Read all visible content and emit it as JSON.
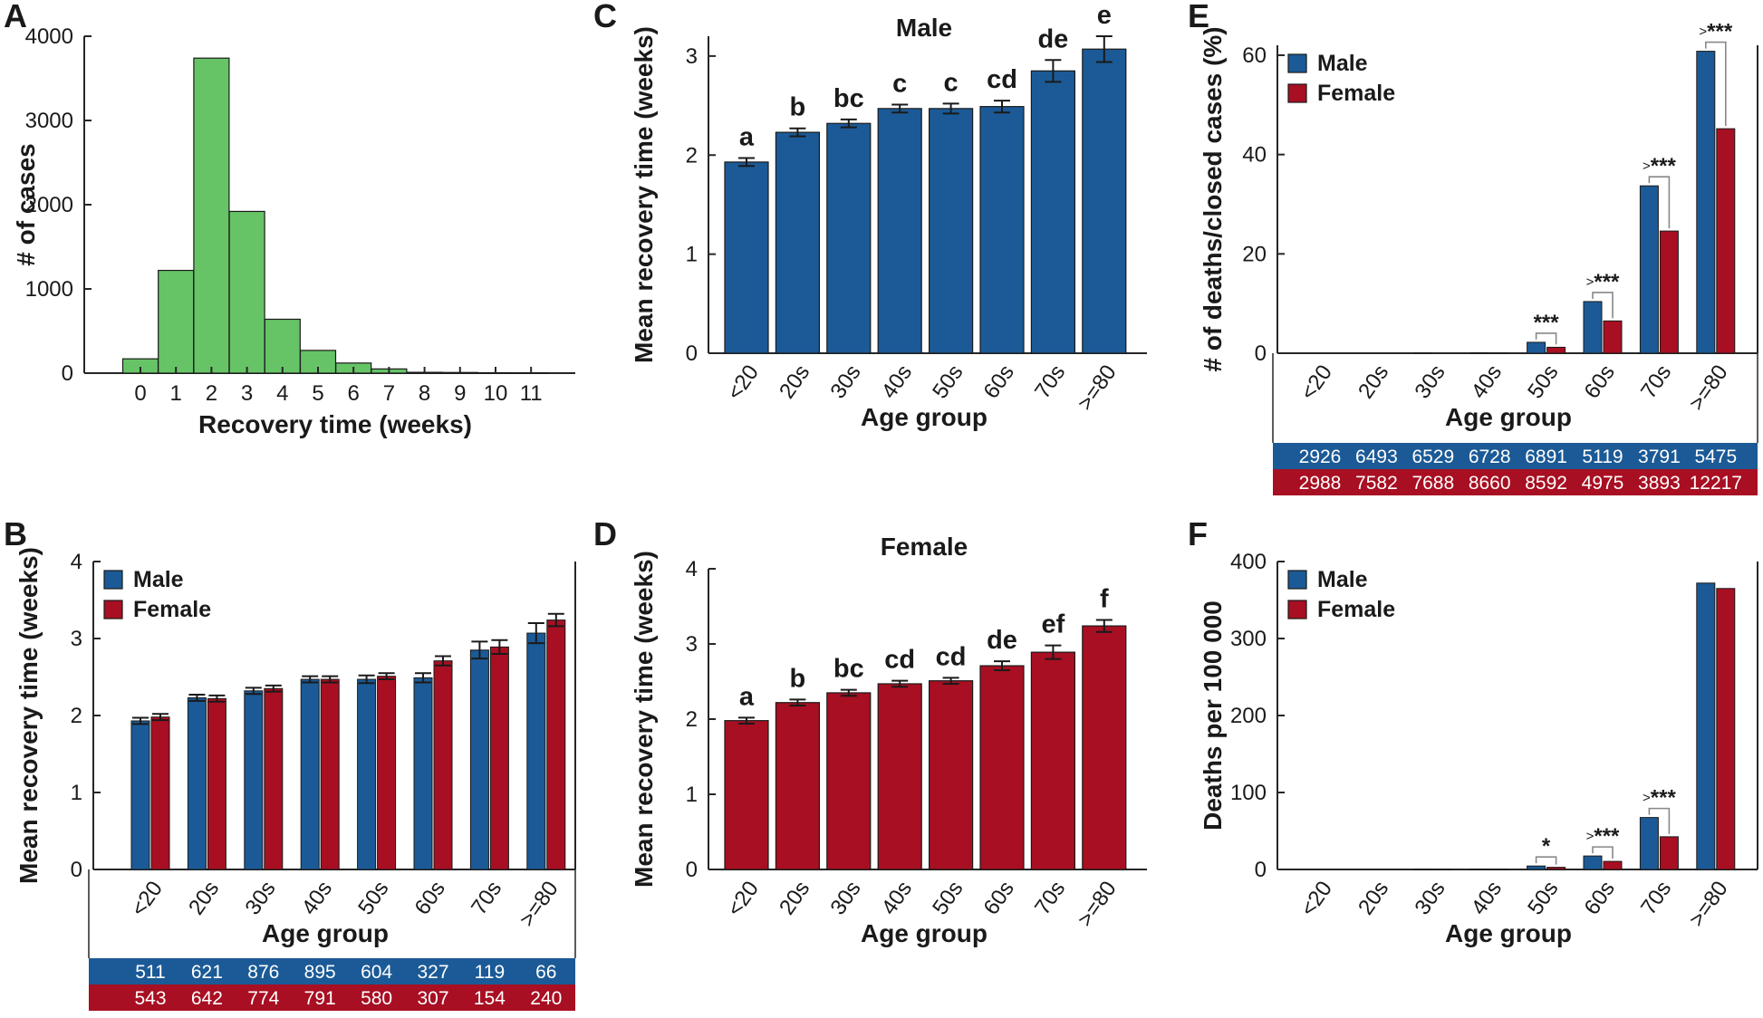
{
  "colors": {
    "male": "#1b5a96",
    "female": "#a80f22",
    "hist": "#66c467",
    "axis": "#262626",
    "bracket": "#888888"
  },
  "legend": {
    "male": "Male",
    "female": "Female"
  },
  "panels": {
    "A": {
      "letter": "A"
    },
    "B": {
      "letter": "B"
    },
    "C": {
      "letter": "C"
    },
    "D": {
      "letter": "D"
    },
    "E": {
      "letter": "E"
    },
    "F": {
      "letter": "F"
    }
  },
  "chart_data": [
    {
      "id": "A",
      "type": "bar",
      "title": "",
      "xlabel": "Recovery time (weeks)",
      "ylabel": "# of cases",
      "categories": [
        "0",
        "1",
        "2",
        "3",
        "4",
        "5",
        "6",
        "7",
        "8",
        "9",
        "10",
        "11"
      ],
      "values": [
        170,
        1220,
        3740,
        1920,
        640,
        270,
        120,
        50,
        10,
        8,
        5,
        3
      ],
      "ylim": [
        0,
        4000
      ],
      "yticks": [
        0,
        1000,
        2000,
        3000,
        4000
      ]
    },
    {
      "id": "B",
      "type": "bar",
      "title": "",
      "xlabel": "Age group",
      "ylabel": "Mean recovery time (weeks)",
      "categories": [
        "<20",
        "20s",
        "30s",
        "40s",
        "50s",
        "60s",
        "70s",
        ">=80"
      ],
      "series": [
        {
          "name": "Male",
          "values": [
            1.93,
            2.23,
            2.32,
            2.47,
            2.47,
            2.49,
            2.85,
            3.07
          ],
          "errors": [
            0.04,
            0.04,
            0.04,
            0.04,
            0.05,
            0.06,
            0.11,
            0.13
          ]
        },
        {
          "name": "Female",
          "values": [
            1.98,
            2.22,
            2.35,
            2.47,
            2.51,
            2.71,
            2.89,
            3.24
          ],
          "errors": [
            0.04,
            0.04,
            0.04,
            0.04,
            0.04,
            0.06,
            0.09,
            0.08
          ]
        }
      ],
      "ylim": [
        0,
        4
      ],
      "yticks": [
        0,
        1,
        2,
        3,
        4
      ],
      "legend": "top-left",
      "table": {
        "male": [
          "511",
          "621",
          "876",
          "895",
          "604",
          "327",
          "119",
          "66"
        ],
        "female": [
          "543",
          "642",
          "774",
          "791",
          "580",
          "307",
          "154",
          "240"
        ]
      }
    },
    {
      "id": "C",
      "type": "bar",
      "title": "Male",
      "xlabel": "Age group",
      "ylabel": "Mean recovery time (weeks)",
      "categories": [
        "<20",
        "20s",
        "30s",
        "40s",
        "50s",
        "60s",
        "70s",
        ">=80"
      ],
      "values": [
        1.93,
        2.23,
        2.32,
        2.47,
        2.47,
        2.49,
        2.85,
        3.07
      ],
      "errors": [
        0.04,
        0.04,
        0.04,
        0.04,
        0.05,
        0.06,
        0.11,
        0.13
      ],
      "annotations": [
        "a",
        "b",
        "bc",
        "c",
        "c",
        "cd",
        "de",
        "e"
      ],
      "ylim": [
        0,
        3.2
      ],
      "yticks": [
        0,
        1,
        2,
        3
      ]
    },
    {
      "id": "D",
      "type": "bar",
      "title": "Female",
      "xlabel": "Age group",
      "ylabel": "Mean recovery time (weeks)",
      "categories": [
        "<20",
        "20s",
        "30s",
        "40s",
        "50s",
        "60s",
        "70s",
        ">=80"
      ],
      "values": [
        1.98,
        2.22,
        2.35,
        2.47,
        2.51,
        2.71,
        2.89,
        3.24
      ],
      "errors": [
        0.04,
        0.04,
        0.04,
        0.04,
        0.04,
        0.06,
        0.09,
        0.08
      ],
      "annotations": [
        "a",
        "b",
        "bc",
        "cd",
        "cd",
        "de",
        "ef",
        "f"
      ],
      "ylim": [
        0,
        4
      ],
      "yticks": [
        0,
        1,
        2,
        3,
        4
      ]
    },
    {
      "id": "E",
      "type": "bar",
      "title": "",
      "xlabel": "Age group",
      "ylabel": "# of deaths/closed cases (%)",
      "categories": [
        "<20",
        "20s",
        "30s",
        "40s",
        "50s",
        "60s",
        "70s",
        ">=80"
      ],
      "series": [
        {
          "name": "Male",
          "values": [
            0,
            0,
            0.05,
            0.1,
            2.2,
            10.4,
            33.7,
            60.8
          ]
        },
        {
          "name": "Female",
          "values": [
            0,
            0,
            0,
            0.05,
            1.2,
            6.5,
            24.6,
            45.2
          ]
        }
      ],
      "significance": [
        "",
        "",
        "",
        "",
        "***",
        ">***",
        ">***",
        ">***"
      ],
      "ylim": [
        0,
        62
      ],
      "yticks": [
        0,
        20,
        40,
        60
      ],
      "legend": "top-left",
      "table": {
        "male": [
          "2926",
          "6493",
          "6529",
          "6728",
          "6891",
          "5119",
          "3791",
          "5475"
        ],
        "female": [
          "2988",
          "7582",
          "7688",
          "8660",
          "8592",
          "4975",
          "3893",
          "12217"
        ]
      }
    },
    {
      "id": "F",
      "type": "bar",
      "title": "",
      "xlabel": "Age group",
      "ylabel": "Deaths per 100 000",
      "categories": [
        "<20",
        "20s",
        "30s",
        "40s",
        "50s",
        "60s",
        "70s",
        ">=80"
      ],
      "series": [
        {
          "name": "Male",
          "values": [
            0,
            0,
            0.3,
            0.6,
            4.5,
            17.5,
            67.5,
            372
          ]
        },
        {
          "name": "Female",
          "values": [
            0,
            0,
            0.1,
            0.3,
            2.8,
            10.5,
            42.5,
            365
          ]
        }
      ],
      "significance": [
        "",
        "",
        "",
        "",
        "*",
        ">***",
        ">***",
        ""
      ],
      "ylim": [
        0,
        400
      ],
      "yticks": [
        0,
        100,
        200,
        300,
        400
      ],
      "legend": "top-left"
    }
  ]
}
